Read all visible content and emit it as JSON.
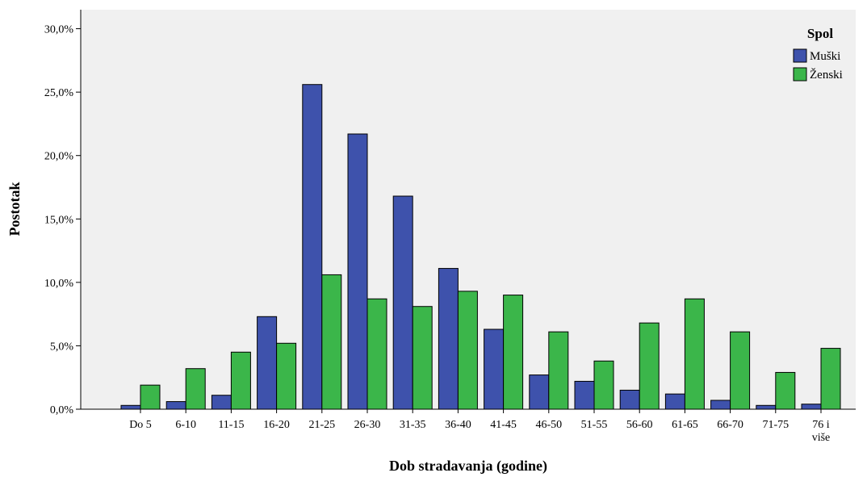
{
  "colors": {
    "plot_background": "#f0f0f0",
    "male": "#3e52ac",
    "female": "#3bb64a",
    "bar_outline": "#000000"
  },
  "chart_data": {
    "type": "bar",
    "xlabel": "Dob stradavanja (godine)",
    "ylabel": "Postotak",
    "ylim": [
      0,
      31.5
    ],
    "yticks": [
      0,
      5,
      10,
      15,
      20,
      25,
      30
    ],
    "ytick_labels": [
      "0,0%",
      "5,0%",
      "10,0%",
      "15,0%",
      "20,0%",
      "25,0%",
      "30,0%"
    ],
    "categories": [
      "Do 5",
      "6-10",
      "11-15",
      "16-20",
      "21-25",
      "26-30",
      "31-35",
      "36-40",
      "41-45",
      "46-50",
      "51-55",
      "56-60",
      "61-65",
      "66-70",
      "71-75",
      "76 i više"
    ],
    "category_label_lines": [
      [
        "Do 5"
      ],
      [
        "6-10"
      ],
      [
        "11-15"
      ],
      [
        "16-20"
      ],
      [
        "21-25"
      ],
      [
        "26-30"
      ],
      [
        "31-35"
      ],
      [
        "36-40"
      ],
      [
        "41-45"
      ],
      [
        "46-50"
      ],
      [
        "51-55"
      ],
      [
        "56-60"
      ],
      [
        "61-65"
      ],
      [
        "66-70"
      ],
      [
        "71-75"
      ],
      [
        "76 i",
        "više"
      ]
    ],
    "legend": {
      "title": "Spol",
      "position": "top-right"
    },
    "grid": false,
    "series": [
      {
        "name": "Muški",
        "color": "#3e52ac",
        "values": [
          0.3,
          0.6,
          1.1,
          7.3,
          25.6,
          21.7,
          16.8,
          11.1,
          6.3,
          2.7,
          2.2,
          1.5,
          1.2,
          0.7,
          0.3,
          0.4
        ]
      },
      {
        "name": "Ženski",
        "color": "#3bb64a",
        "values": [
          1.9,
          3.2,
          4.5,
          5.2,
          10.6,
          8.7,
          8.1,
          9.3,
          9.0,
          6.1,
          3.8,
          6.8,
          8.7,
          6.1,
          2.9,
          4.8
        ]
      }
    ]
  }
}
